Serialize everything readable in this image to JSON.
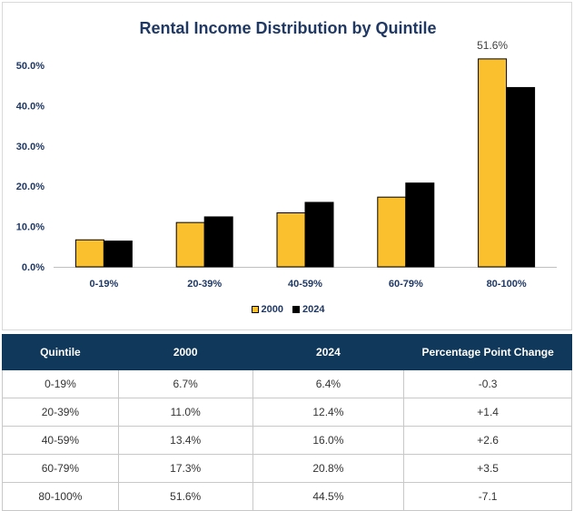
{
  "title": "Rental Income Distribution by Quintile",
  "colors": {
    "series_2000": "#fbc02d",
    "series_2024": "#000000",
    "title": "#1f3864",
    "header_bg": "#10385a"
  },
  "chart_data": {
    "type": "bar",
    "title": "Rental Income Distribution by Quintile",
    "categories": [
      "0-19%",
      "20-39%",
      "40-59%",
      "60-79%",
      "80-100%"
    ],
    "series": [
      {
        "name": "2000",
        "values": [
          6.7,
          11.0,
          13.4,
          17.3,
          51.6
        ]
      },
      {
        "name": "2024",
        "values": [
          6.4,
          12.4,
          16.0,
          20.8,
          44.5
        ]
      }
    ],
    "yticks": [
      "0.0%",
      "10.0%",
      "20.0%",
      "30.0%",
      "40.0%",
      "50.0%"
    ],
    "ylim": [
      0,
      50
    ],
    "data_labels": [
      {
        "series": "2000",
        "category": "80-100%",
        "text": "51.6%"
      }
    ],
    "legend_position": "bottom",
    "grid": false
  },
  "table": {
    "headers": [
      "Quintile",
      "2000",
      "2024",
      "Percentage Point Change"
    ],
    "rows": [
      [
        "0-19%",
        "6.7%",
        "6.4%",
        "-0.3"
      ],
      [
        "20-39%",
        "11.0%",
        "12.4%",
        "+1.4"
      ],
      [
        "40-59%",
        "13.4%",
        "16.0%",
        "+2.6"
      ],
      [
        "60-79%",
        "17.3%",
        "20.8%",
        "+3.5"
      ],
      [
        "80-100%",
        "51.6%",
        "44.5%",
        "-7.1"
      ]
    ]
  }
}
